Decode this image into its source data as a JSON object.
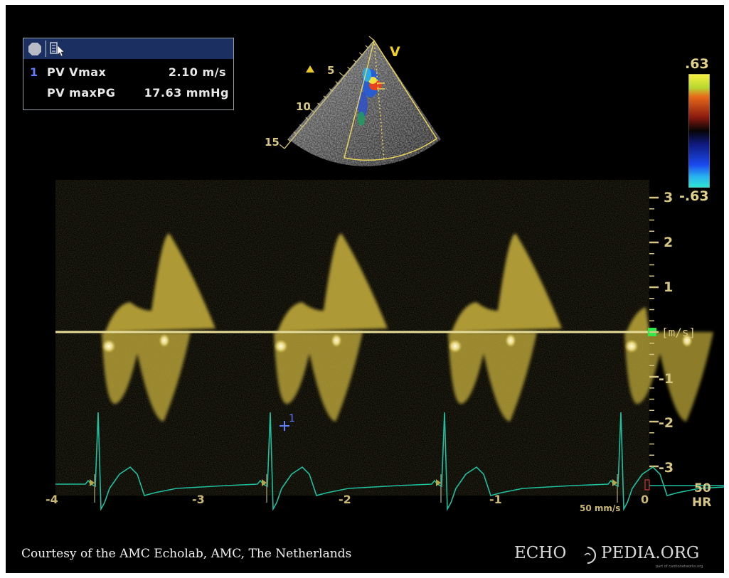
{
  "measurement": {
    "index": "1",
    "rows": [
      {
        "label": "PV Vmax",
        "value": "2.10 m/s"
      },
      {
        "label": "PV maxPG",
        "value": "17.63 mmHg"
      }
    ]
  },
  "sector": {
    "depth_labels": [
      "5",
      "10",
      "15"
    ],
    "mode_label": "V"
  },
  "color_scale": {
    "top": ".63",
    "bottom": "-.63"
  },
  "velocity_axis": {
    "ticks": [
      "3",
      "2",
      "1",
      "-1",
      "-2",
      "-3"
    ],
    "unit": "[m/s]"
  },
  "time_axis": {
    "ticks": [
      "-4",
      "-3",
      "-2",
      "-1",
      "0"
    ]
  },
  "cursor_marker": "1",
  "sweep_speed": "50 mm/s",
  "heart_rate": {
    "value": "50",
    "label": "HR"
  },
  "credit": "Courtesy of the AMC Echolab, AMC, The Netherlands",
  "brand": {
    "left": "ECHO",
    "right": "PEDIA.ORG",
    "sub": "part of cardionetworks.org"
  },
  "colors": {
    "spectrum": "#c9b23c",
    "baseline": "#e6dc9a",
    "ecg": "#1fbf9f",
    "axis_text": "#d6c684",
    "panel_bar": "#1b2f61"
  }
}
